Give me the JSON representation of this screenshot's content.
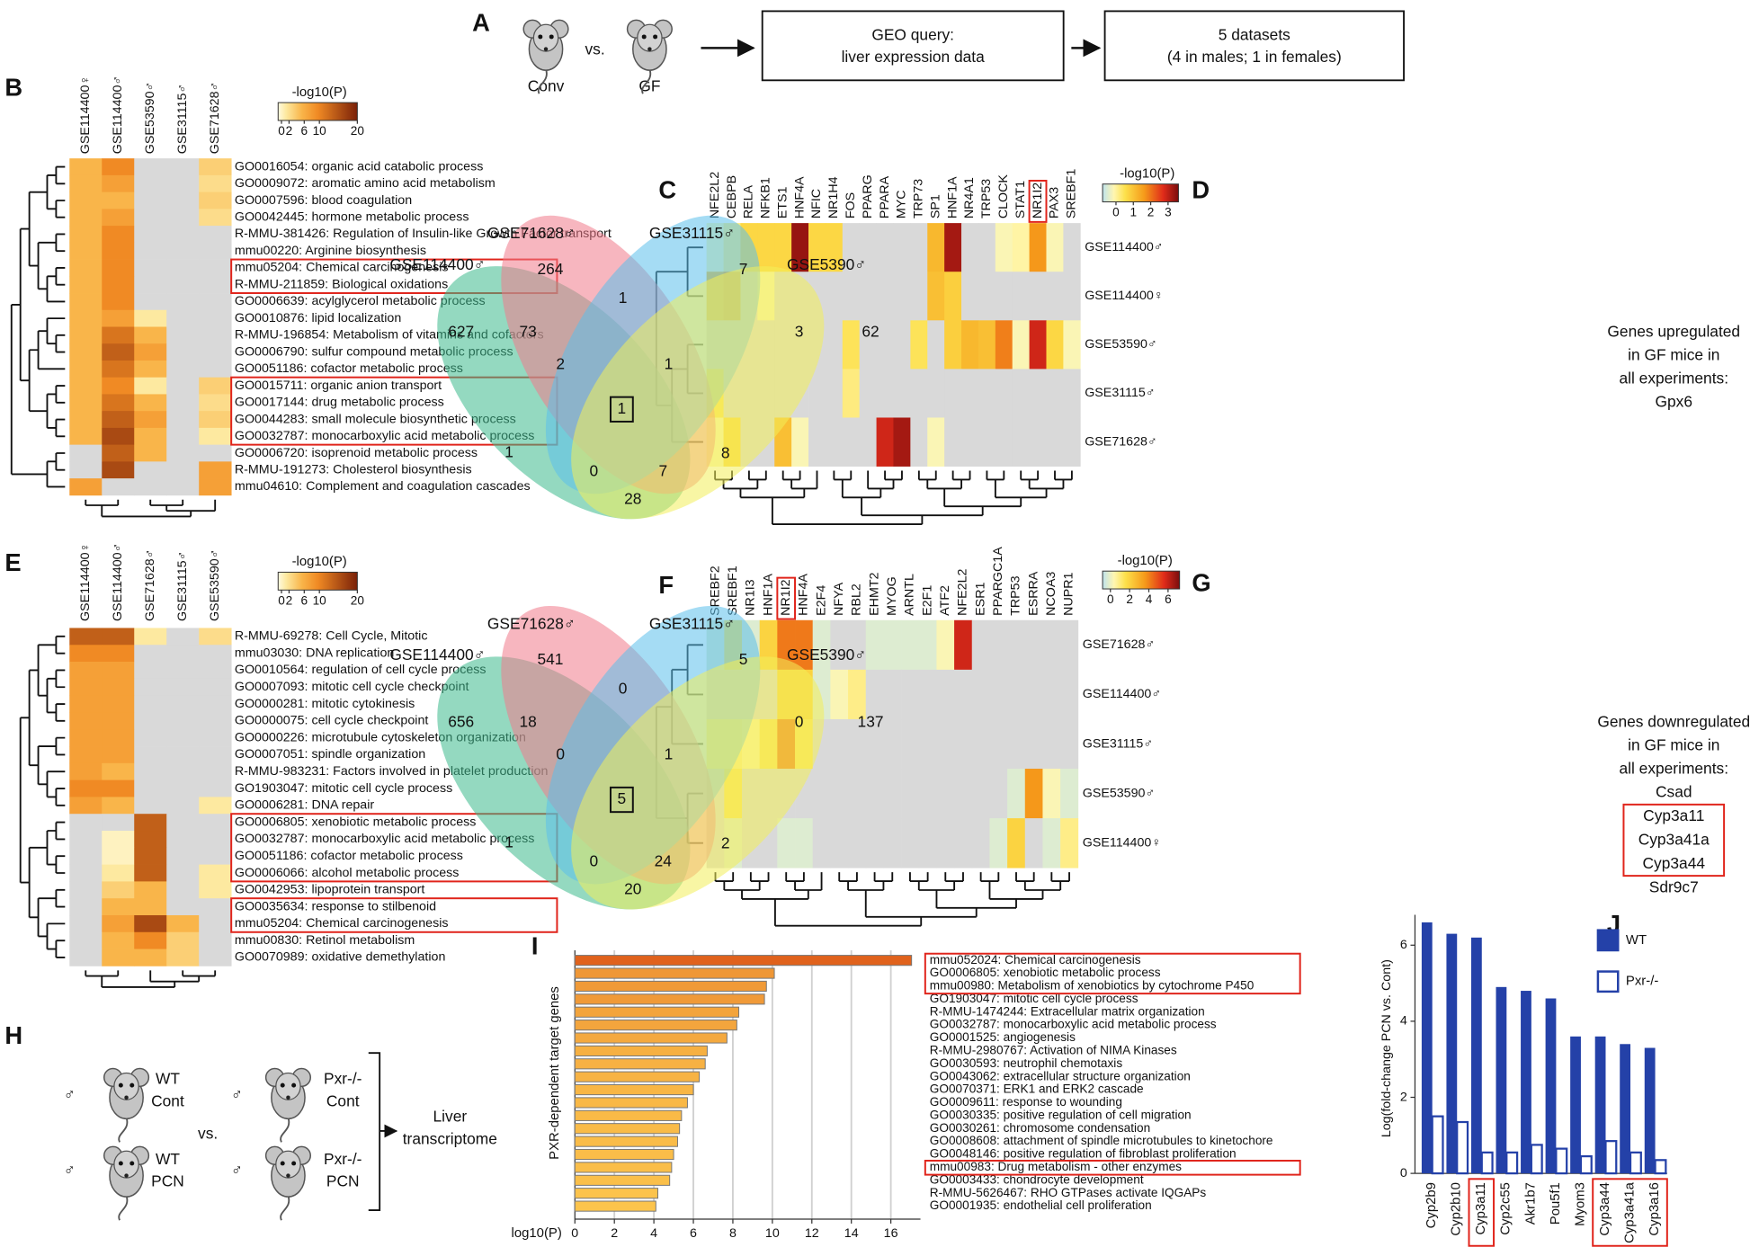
{
  "panel_a": {
    "letter": "A",
    "conv": "Conv",
    "vs": "vs.",
    "gf": "GF",
    "query": [
      "GEO query:",
      "liver expression data"
    ],
    "datasets": [
      "5 datasets",
      "(4 in males; 1 in females)"
    ]
  },
  "panel_b": {
    "letter": "B",
    "legend_title": "-log10(P)",
    "legend_ticks": [
      0,
      2,
      6,
      10,
      20
    ],
    "columns": [
      "GSE114400♀",
      "GSE114400♂",
      "GSE53590♂",
      "GSE31115♂",
      "GSE71628♂"
    ],
    "rows": [
      {
        "label": "GO0016054: organic acid catabolic process",
        "values": [
          6,
          10,
          null,
          null,
          4
        ]
      },
      {
        "label": "GO0009072: aromatic amino acid metabolism",
        "values": [
          6,
          8,
          null,
          null,
          3
        ]
      },
      {
        "label": "GO0007596: blood coagulation",
        "values": [
          6,
          6,
          null,
          null,
          4
        ]
      },
      {
        "label": "GO0042445: hormone metabolic process",
        "values": [
          6,
          8,
          null,
          null,
          3
        ]
      },
      {
        "label": "R-MMU-381426: Regulation of Insulin-like Growth Factor transport",
        "values": [
          6,
          10,
          null,
          null,
          null
        ]
      },
      {
        "label": "mmu00220: Arginine biosynthesis",
        "values": [
          6,
          10,
          null,
          null,
          null
        ]
      },
      {
        "label": "mmu05204: Chemical carcinogenesis",
        "values": [
          6,
          10,
          null,
          null,
          null
        ],
        "boxed": true
      },
      {
        "label": "R-MMU-211859: Biological oxidations",
        "values": [
          6,
          10,
          null,
          null,
          null
        ],
        "boxed": true
      },
      {
        "label": "GO0006639: acylglycerol metabolic process",
        "values": [
          6,
          10,
          null,
          null,
          null
        ]
      },
      {
        "label": "GO0010876: lipid localization",
        "values": [
          6,
          8,
          2,
          null,
          null
        ]
      },
      {
        "label": "R-MMU-196854: Metabolism of vitamins and cofactors",
        "values": [
          6,
          12,
          6,
          null,
          null
        ]
      },
      {
        "label": "GO0006790: sulfur compound metabolic process",
        "values": [
          6,
          14,
          8,
          null,
          null
        ]
      },
      {
        "label": "GO0051186: cofactor metabolic process",
        "values": [
          6,
          12,
          6,
          null,
          null
        ]
      },
      {
        "label": "GO0015711: organic anion transport",
        "values": [
          6,
          10,
          2,
          null,
          4
        ],
        "boxed": true
      },
      {
        "label": "GO0017144: drug metabolic process",
        "values": [
          6,
          12,
          6,
          null,
          3
        ],
        "boxed": true
      },
      {
        "label": "GO0044283: small molecule biosynthetic process",
        "values": [
          6,
          14,
          8,
          null,
          4
        ],
        "boxed": true
      },
      {
        "label": "GO0032787: monocarboxylic acid metabolic process",
        "values": [
          6,
          16,
          6,
          null,
          2
        ],
        "boxed": true
      },
      {
        "label": "GO0006720: isoprenoid metabolic process",
        "values": [
          null,
          14,
          6,
          null,
          null
        ]
      },
      {
        "label": "R-MMU-191273: Cholesterol biosynthesis",
        "values": [
          null,
          16,
          null,
          null,
          8
        ]
      },
      {
        "label": "mmu04610: Complement and coagulation cascades",
        "values": [
          8,
          null,
          null,
          null,
          8
        ]
      }
    ]
  },
  "panel_c": {
    "letter": "C",
    "legend_title": "-log10(P)",
    "legend_ticks": [
      0,
      1,
      2,
      3
    ],
    "columns": [
      {
        "label": "NFE2L2"
      },
      {
        "label": "CEBPB"
      },
      {
        "label": "RELA"
      },
      {
        "label": "NFKB1"
      },
      {
        "label": "ETS1"
      },
      {
        "label": "HNF4A"
      },
      {
        "label": "NFIC"
      },
      {
        "label": "NR1H4"
      },
      {
        "label": "FOS"
      },
      {
        "label": "PPARG"
      },
      {
        "label": "PPARA"
      },
      {
        "label": "MYC"
      },
      {
        "label": "TRP73"
      },
      {
        "label": "SP1"
      },
      {
        "label": "HNF1A"
      },
      {
        "label": "NR4A1"
      },
      {
        "label": "TRP53"
      },
      {
        "label": "CLOCK"
      },
      {
        "label": "STAT1"
      },
      {
        "label": "NR1I2",
        "boxed": true
      },
      {
        "label": "PAX3"
      },
      {
        "label": "SREBF1"
      }
    ],
    "rows": [
      {
        "label": "GSE114400♂",
        "values": [
          0.5,
          0.8,
          1.2,
          1.2,
          1.2,
          3.4,
          1.2,
          1.2,
          null,
          null,
          null,
          null,
          null,
          1.6,
          3.3,
          null,
          null,
          0.5,
          0.6,
          2,
          0.5,
          null
        ]
      },
      {
        "label": "GSE114400♀",
        "values": [
          1.5,
          1.8,
          null,
          0.5,
          null,
          null,
          null,
          null,
          null,
          null,
          null,
          null,
          null,
          1.5,
          1.3,
          null,
          null,
          null,
          null,
          null,
          null,
          null
        ]
      },
      {
        "label": "GSE53590♂",
        "values": [
          null,
          null,
          null,
          null,
          null,
          null,
          null,
          null,
          1,
          null,
          null,
          null,
          1,
          null,
          1.3,
          1.6,
          1.5,
          2.2,
          0.5,
          3,
          1.2,
          0.5
        ]
      },
      {
        "label": "GSE31115♂",
        "values": [
          1,
          null,
          null,
          null,
          null,
          null,
          null,
          null,
          0.8,
          null,
          null,
          null,
          null,
          null,
          null,
          null,
          null,
          null,
          null,
          null,
          null,
          null
        ]
      },
      {
        "label": "GSE71628♂",
        "values": [
          0.5,
          1.2,
          null,
          null,
          1.5,
          0.5,
          null,
          null,
          null,
          null,
          3,
          3.3,
          null,
          0.5,
          null,
          null,
          null,
          null,
          null,
          null,
          null,
          null
        ]
      }
    ]
  },
  "panel_d": {
    "letter": "D",
    "sets": [
      "GSE114400♂",
      "GSE71628♂",
      "GSE31115♂",
      "GSE5390♂"
    ],
    "regions": [
      264,
      7,
      627,
      62,
      73,
      1,
      3,
      2,
      1,
      1,
      1,
      8,
      0,
      7,
      28
    ],
    "note": [
      "Genes upregulated",
      "in GF mice in",
      "all experiments:"
    ],
    "genes": [
      {
        "name": "Gpx6"
      }
    ]
  },
  "panel_e": {
    "letter": "E",
    "legend_title": "-log10(P)",
    "legend_ticks": [
      0,
      2,
      6,
      10,
      20
    ],
    "columns": [
      "GSE114400♀",
      "GSE114400♂",
      "GSE71628♂",
      "GSE31115♂",
      "GSE53590♂"
    ],
    "rows": [
      {
        "label": "R-MMU-69278: Cell Cycle, Mitotic",
        "values": [
          14,
          14,
          2,
          null,
          3
        ]
      },
      {
        "label": "mmu03030: DNA replication",
        "values": [
          10,
          10,
          null,
          null,
          null
        ]
      },
      {
        "label": "GO0010564: regulation of cell cycle process",
        "values": [
          8,
          8,
          null,
          null,
          null
        ]
      },
      {
        "label": "GO0007093: mitotic cell cycle checkpoint",
        "values": [
          8,
          8,
          null,
          null,
          null
        ]
      },
      {
        "label": "GO0000281: mitotic cytokinesis",
        "values": [
          8,
          8,
          null,
          null,
          null
        ]
      },
      {
        "label": "GO0000075: cell cycle checkpoint",
        "values": [
          8,
          8,
          null,
          null,
          null
        ]
      },
      {
        "label": "GO0000226: microtubule cytoskeleton organization",
        "values": [
          8,
          8,
          null,
          null,
          null
        ]
      },
      {
        "label": "GO0007051: spindle organization",
        "values": [
          8,
          8,
          null,
          null,
          null
        ]
      },
      {
        "label": "R-MMU-983231: Factors involved in platelet production",
        "values": [
          8,
          6,
          null,
          null,
          null
        ]
      },
      {
        "label": "GO1903047: mitotic cell cycle process",
        "values": [
          10,
          10,
          null,
          null,
          null
        ]
      },
      {
        "label": "GO0006281: DNA repair",
        "values": [
          8,
          6,
          null,
          null,
          2
        ]
      },
      {
        "label": "GO0006805: xenobiotic metabolic process",
        "values": [
          null,
          null,
          14,
          null,
          null
        ],
        "boxed": true
      },
      {
        "label": "GO0032787: monocarboxylic acid metabolic process",
        "values": [
          null,
          1,
          14,
          null,
          null
        ],
        "boxed": true
      },
      {
        "label": "GO0051186: cofactor metabolic process",
        "values": [
          null,
          1,
          14,
          null,
          null
        ],
        "boxed": true
      },
      {
        "label": "GO0006066: alcohol metabolic process",
        "values": [
          null,
          2,
          14,
          null,
          2
        ],
        "boxed": true
      },
      {
        "label": "GO0042953: lipoprotein transport",
        "values": [
          null,
          4,
          6,
          null,
          2
        ]
      },
      {
        "label": "GO0035634: response to stilbenoid",
        "values": [
          null,
          6,
          6,
          null,
          null
        ],
        "boxed": true
      },
      {
        "label": "mmu05204: Chemical carcinogenesis",
        "values": [
          null,
          8,
          16,
          6,
          null
        ],
        "boxed": true
      },
      {
        "label": "mmu00830: Retinol metabolism",
        "values": [
          null,
          6,
          10,
          4,
          null
        ]
      },
      {
        "label": "GO0070989: oxidative demethylation",
        "values": [
          null,
          6,
          6,
          4,
          null
        ]
      }
    ]
  },
  "panel_f": {
    "letter": "F",
    "legend_title": "-log10(P)",
    "legend_ticks": [
      0,
      2,
      4,
      6
    ],
    "columns": [
      {
        "label": "SREBF2"
      },
      {
        "label": "SREBF1"
      },
      {
        "label": "NR1I3"
      },
      {
        "label": "HNF1A"
      },
      {
        "label": "NR1I2",
        "boxed": true
      },
      {
        "label": "HNF4A"
      },
      {
        "label": "E2F4"
      },
      {
        "label": "NFYA"
      },
      {
        "label": "RBL2"
      },
      {
        "label": "EHMT2"
      },
      {
        "label": "MYOG"
      },
      {
        "label": "ARNTL"
      },
      {
        "label": "E2F1"
      },
      {
        "label": "ATF2"
      },
      {
        "label": "NFE2L2"
      },
      {
        "label": "ESR1"
      },
      {
        "label": "PPARGC1A"
      },
      {
        "label": "TRP53"
      },
      {
        "label": "ESRRA"
      },
      {
        "label": "NCOA3"
      },
      {
        "label": "NUPR1"
      }
    ],
    "rows": [
      {
        "label": "GSE71628♂",
        "values": [
          0.5,
          2,
          0.5,
          2.5,
          4.5,
          4.5,
          0.5,
          null,
          null,
          0.5,
          0.5,
          0.5,
          0.5,
          1,
          6,
          null,
          null,
          null,
          null,
          null,
          null
        ]
      },
      {
        "label": "GSE114400♂",
        "values": [
          null,
          null,
          null,
          null,
          2.5,
          2.5,
          0.5,
          1,
          1.5,
          null,
          null,
          null,
          null,
          null,
          null,
          null,
          null,
          null,
          null,
          null,
          null
        ]
      },
      {
        "label": "GSE31115♂",
        "values": [
          1.5,
          1.5,
          1.2,
          2,
          4.5,
          2,
          null,
          null,
          null,
          null,
          null,
          null,
          null,
          null,
          null,
          null,
          null,
          null,
          null,
          null,
          null
        ]
      },
      {
        "label": "GSE53590♂",
        "values": [
          null,
          2,
          null,
          null,
          null,
          null,
          null,
          null,
          null,
          null,
          null,
          null,
          null,
          null,
          null,
          null,
          null,
          0.5,
          4,
          1,
          0.5
        ]
      },
      {
        "label": "GSE114400♀",
        "values": [
          null,
          0.5,
          null,
          null,
          0.5,
          0.5,
          null,
          null,
          null,
          null,
          null,
          null,
          null,
          null,
          null,
          null,
          0.5,
          2.5,
          null,
          0.5,
          1.5
        ]
      }
    ]
  },
  "panel_g": {
    "letter": "G",
    "sets": [
      "GSE114400♂",
      "GSE71628♂",
      "GSE31115♂",
      "GSE5390♂"
    ],
    "regions": [
      541,
      5,
      656,
      137,
      18,
      0,
      0,
      0,
      1,
      5,
      1,
      2,
      0,
      24,
      20
    ],
    "note": [
      "Genes downregulated",
      "in GF mice in",
      "all experiments:"
    ],
    "genes": [
      {
        "name": "Csad"
      },
      {
        "name": "Cyp3a11",
        "boxed": true
      },
      {
        "name": "Cyp3a41a",
        "boxed": true
      },
      {
        "name": "Cyp3a44",
        "boxed": true
      },
      {
        "name": "Sdr9c7"
      }
    ]
  },
  "panel_h": {
    "letter": "H",
    "male": "♂",
    "wt": "WT",
    "pxr": "Pxr-/-",
    "cont": "Cont",
    "pcn": "PCN",
    "vs": "vs.",
    "result": [
      "Liver",
      "transcriptome"
    ]
  },
  "panel_i": {
    "letter": "I",
    "type": "bar",
    "xlabel": "log10(P)",
    "ylabel": "PXR-dependent target genes",
    "xlim": [
      0,
      17.5
    ],
    "xticks": [
      0,
      2,
      4,
      6,
      8,
      10,
      12,
      14,
      16
    ],
    "grid": true,
    "colors": [
      "#fcc44c",
      "#e0621c"
    ],
    "categories": [
      "mmu052024: Chemical carcinogenesis",
      "GO0006805: xenobiotic metabolic process",
      "mmu00980: Metabolism of xenobiotics by cytochrome P450",
      "GO1903047: mitotic cell cycle process",
      "R-MMU-1474244: Extracellular matrix organization",
      "GO0032787: monocarboxylic acid metabolic process",
      "GO0001525: angiogenesis",
      "R-MMU-2980767: Activation of NIMA Kinases",
      "GO0030593: neutrophil chemotaxis",
      "GO0043062: extracellular structure organization",
      "GO0070371: ERK1 and ERK2 cascade",
      "GO0009611: response to wounding",
      "GO0030335: positive regulation of cell migration",
      "GO0030261: chromosome condensation",
      "GO0008608: attachment of spindle microtubules to kinetochore",
      "GO0048146: positive regulation of fibroblast proliferation",
      "mmu00983: Drug metabolism - other enzymes",
      "GO0003433: chondrocyte development",
      "R-MMU-5626467: RHO GTPases activate IQGAPs",
      "GO0001935: endothelial cell proliferation"
    ],
    "values": [
      17.05,
      10.1,
      9.7,
      9.6,
      8.3,
      8.2,
      7.7,
      6.7,
      6.6,
      6.3,
      6.0,
      5.7,
      5.4,
      5.3,
      5.2,
      5.0,
      4.9,
      4.8,
      4.2,
      4.1
    ],
    "boxed": [
      true,
      true,
      true,
      false,
      false,
      false,
      false,
      false,
      false,
      false,
      false,
      false,
      false,
      false,
      false,
      false,
      true,
      false,
      false,
      false
    ]
  },
  "panel_j": {
    "letter": "J",
    "type": "bar",
    "ylabel": "Log(fold-change PCN vs. Cont)",
    "ylim": [
      0,
      6.8
    ],
    "yticks": [
      0,
      2,
      4,
      6
    ],
    "categories": [
      "Cyp2b9",
      "Cyp2b10",
      "Cyp3a11",
      "Cyp2c55",
      "Akr1b7",
      "Pou5f1",
      "Myom3",
      "Cyp3a44",
      "Cyp3a41a",
      "Cyp3a16"
    ],
    "boxed": [
      false,
      false,
      true,
      false,
      false,
      false,
      false,
      true,
      true,
      true
    ],
    "series": [
      {
        "name": "WT",
        "color": "#2441a8",
        "filled": true,
        "values": [
          6.6,
          6.3,
          6.2,
          4.9,
          4.8,
          4.6,
          3.6,
          3.6,
          3.4,
          3.3
        ]
      },
      {
        "name": "Pxr-/-",
        "color": "#2441a8",
        "filled": false,
        "values": [
          1.5,
          1.35,
          0.55,
          0.55,
          0.75,
          0.65,
          0.45,
          0.85,
          0.55,
          0.35
        ]
      }
    ]
  }
}
